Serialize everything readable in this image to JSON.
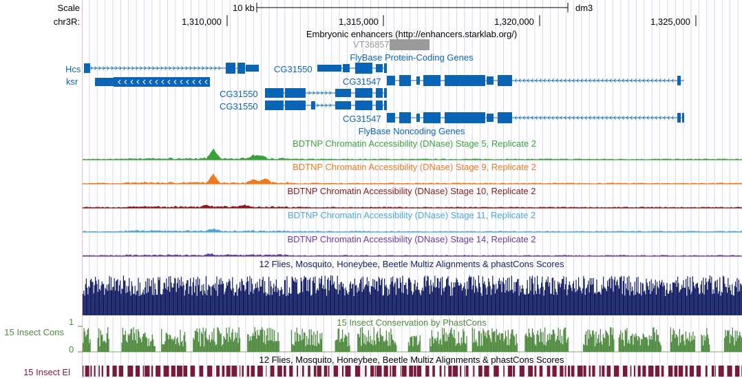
{
  "browser": {
    "assembly": "dm3",
    "scale_label": "Scale",
    "scale_bar": "10 kb",
    "chrom_label": "chr3R:",
    "positions": [
      "1,310,000",
      "1,315,000",
      "1,320,000",
      "1,325,000"
    ]
  },
  "tracks": {
    "enhancers": {
      "title": "Embryonic enhancers (http://enhancers.starklab.org/)",
      "item": "VT36857",
      "color": "#9a9a9a"
    },
    "protein_genes": {
      "title": "FlyBase Protein-Coding Genes",
      "color": "#0c64b4",
      "genes": [
        "Hcs",
        "ksr",
        "CG31550",
        "CG31547",
        "CG31550",
        "CG31547",
        "CG31550",
        "CG31547"
      ]
    },
    "noncoding": {
      "title": "FlyBase Noncoding Genes"
    },
    "dnase": [
      {
        "title": "BDTNP Chromatin Accessibility (DNase) Stage 5, Replicate 2",
        "color": "#3ba23b"
      },
      {
        "title": "BDTNP Chromatin Accessibility (DNase) Stage 9, Replicate 2",
        "color": "#ee7a1f"
      },
      {
        "title": "BDTNP Chromatin Accessibility (DNase) Stage 10, Replicate 2",
        "color": "#8b1a1a"
      },
      {
        "title": "BDTNP Chromatin Accessibility (DNase) Stage 11, Replicate 2",
        "color": "#4aa8d8"
      },
      {
        "title": "BDTNP Chromatin Accessibility (DNase) Stage 14, Replicate 2",
        "color": "#6a3b9c"
      }
    ],
    "multiz": {
      "title": "12 Flies, Mosquito, Honeybee, Beetle Multiz Alignments & phastCons Scores",
      "color": "#141e64"
    },
    "cons": {
      "title": "15 Insect Conservation by PhastCons",
      "side_label": "15 Insect Cons",
      "axis_max": "1",
      "axis_min": "0",
      "color": "#4e8a3e"
    },
    "elements": {
      "title": "12 Flies, Mosquito, Honeybee, Beetle Multiz Alignments & phastCons Scores",
      "side_label": "15 Insect El",
      "color": "#7a1a3a"
    }
  }
}
